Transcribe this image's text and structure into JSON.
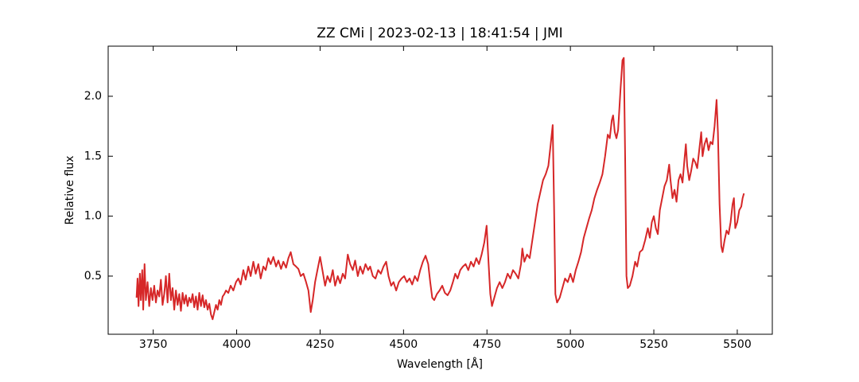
{
  "chart_data": {
    "type": "line",
    "title": "ZZ CMi | 2023-02-13 | 18:41:54 | JMI",
    "xlabel": "Wavelength [Å]",
    "ylabel": "Relative flux",
    "xlim": [
      3615,
      5605
    ],
    "ylim": [
      0.015,
      2.418
    ],
    "xticks": [
      3750,
      4000,
      4250,
      4500,
      4750,
      5000,
      5250,
      5500
    ],
    "yticks": [
      0.5,
      {
        "value": 1,
        "label": "1.0"
      },
      1.5,
      {
        "value": 2,
        "label": "2.0"
      }
    ],
    "grid": false,
    "x": [
      3700,
      3703,
      3706,
      3710,
      3713,
      3717,
      3720,
      3724,
      3728,
      3733,
      3738,
      3743,
      3748,
      3753,
      3758,
      3763,
      3768,
      3773,
      3778,
      3783,
      3788,
      3793,
      3798,
      3803,
      3808,
      3813,
      3818,
      3823,
      3828,
      3833,
      3838,
      3843,
      3848,
      3853,
      3858,
      3863,
      3868,
      3873,
      3878,
      3883,
      3888,
      3893,
      3898,
      3903,
      3908,
      3913,
      3918,
      3923,
      3928,
      3933,
      3938,
      3943,
      3948,
      3953,
      3958,
      3963,
      3968,
      3975,
      3982,
      3990,
      3998,
      4005,
      4012,
      4020,
      4027,
      4035,
      4042,
      4050,
      4057,
      4065,
      4072,
      4080,
      4087,
      4095,
      4102,
      4110,
      4118,
      4125,
      4133,
      4140,
      4148,
      4155,
      4162,
      4170,
      4178,
      4185,
      4192,
      4200,
      4208,
      4215,
      4222,
      4228,
      4235,
      4242,
      4250,
      4257,
      4265,
      4272,
      4280,
      4288,
      4295,
      4303,
      4310,
      4318,
      4325,
      4333,
      4340,
      4348,
      4355,
      4363,
      4370,
      4378,
      4386,
      4394,
      4400,
      4408,
      4416,
      4424,
      4432,
      4440,
      4448,
      4455,
      4463,
      4470,
      4478,
      4486,
      4494,
      4502,
      4510,
      4518,
      4526,
      4534,
      4542,
      4550,
      4558,
      4566,
      4574,
      4580,
      4586,
      4592,
      4600,
      4608,
      4616,
      4624,
      4632,
      4640,
      4648,
      4655,
      4662,
      4670,
      4678,
      4686,
      4694,
      4702,
      4710,
      4718,
      4726,
      4734,
      4742,
      4749,
      4755,
      4760,
      4765,
      4772,
      4780,
      4788,
      4796,
      4804,
      4812,
      4820,
      4828,
      4836,
      4844,
      4852,
      4856,
      4862,
      4870,
      4878,
      4886,
      4894,
      4902,
      4910,
      4918,
      4926,
      4934,
      4941,
      4947,
      4951,
      4955,
      4960,
      4968,
      4976,
      4984,
      4992,
      5000,
      5008,
      5016,
      5024,
      5032,
      5040,
      5048,
      5056,
      5064,
      5072,
      5080,
      5088,
      5096,
      5104,
      5112,
      5118,
      5124,
      5128,
      5133,
      5138,
      5143,
      5150,
      5156,
      5160,
      5164,
      5168,
      5172,
      5178,
      5186,
      5194,
      5200,
      5208,
      5216,
      5224,
      5232,
      5238,
      5244,
      5250,
      5256,
      5262,
      5268,
      5275,
      5282,
      5289,
      5296,
      5300,
      5306,
      5312,
      5318,
      5324,
      5330,
      5336,
      5342,
      5346,
      5350,
      5356,
      5362,
      5368,
      5374,
      5380,
      5386,
      5392,
      5396,
      5402,
      5408,
      5414,
      5420,
      5426,
      5432,
      5438,
      5442,
      5447,
      5452,
      5456,
      5462,
      5468,
      5474,
      5480,
      5486,
      5490,
      5494,
      5500,
      5506,
      5512,
      5516,
      5520
    ],
    "series": [
      {
        "color": "#d62728",
        "values": [
          0.32,
          0.48,
          0.25,
          0.52,
          0.3,
          0.55,
          0.22,
          0.6,
          0.3,
          0.45,
          0.25,
          0.4,
          0.3,
          0.42,
          0.28,
          0.38,
          0.33,
          0.47,
          0.26,
          0.35,
          0.5,
          0.28,
          0.52,
          0.3,
          0.4,
          0.22,
          0.38,
          0.26,
          0.35,
          0.21,
          0.36,
          0.27,
          0.34,
          0.25,
          0.32,
          0.28,
          0.35,
          0.24,
          0.33,
          0.22,
          0.36,
          0.25,
          0.34,
          0.24,
          0.3,
          0.22,
          0.27,
          0.18,
          0.14,
          0.2,
          0.26,
          0.22,
          0.3,
          0.26,
          0.33,
          0.35,
          0.38,
          0.36,
          0.42,
          0.38,
          0.45,
          0.48,
          0.43,
          0.55,
          0.47,
          0.58,
          0.5,
          0.62,
          0.52,
          0.6,
          0.48,
          0.58,
          0.55,
          0.65,
          0.6,
          0.66,
          0.58,
          0.63,
          0.56,
          0.62,
          0.57,
          0.65,
          0.7,
          0.6,
          0.58,
          0.56,
          0.5,
          0.52,
          0.45,
          0.38,
          0.2,
          0.3,
          0.45,
          0.55,
          0.66,
          0.55,
          0.42,
          0.5,
          0.45,
          0.55,
          0.42,
          0.5,
          0.44,
          0.52,
          0.48,
          0.68,
          0.6,
          0.55,
          0.63,
          0.5,
          0.58,
          0.52,
          0.6,
          0.55,
          0.58,
          0.5,
          0.48,
          0.55,
          0.52,
          0.58,
          0.62,
          0.5,
          0.42,
          0.45,
          0.38,
          0.45,
          0.48,
          0.5,
          0.45,
          0.48,
          0.43,
          0.5,
          0.46,
          0.55,
          0.62,
          0.67,
          0.6,
          0.45,
          0.32,
          0.3,
          0.35,
          0.38,
          0.42,
          0.36,
          0.34,
          0.38,
          0.45,
          0.52,
          0.48,
          0.55,
          0.58,
          0.6,
          0.55,
          0.62,
          0.58,
          0.65,
          0.6,
          0.68,
          0.78,
          0.92,
          0.6,
          0.35,
          0.25,
          0.32,
          0.4,
          0.45,
          0.4,
          0.45,
          0.52,
          0.48,
          0.55,
          0.52,
          0.48,
          0.6,
          0.73,
          0.62,
          0.68,
          0.65,
          0.8,
          0.95,
          1.1,
          1.2,
          1.3,
          1.35,
          1.42,
          1.6,
          1.76,
          1.1,
          0.35,
          0.28,
          0.32,
          0.4,
          0.48,
          0.45,
          0.52,
          0.45,
          0.55,
          0.62,
          0.7,
          0.82,
          0.9,
          0.98,
          1.05,
          1.15,
          1.22,
          1.28,
          1.35,
          1.5,
          1.68,
          1.65,
          1.8,
          1.84,
          1.7,
          1.65,
          1.72,
          2.05,
          2.3,
          2.32,
          1.5,
          0.5,
          0.4,
          0.42,
          0.5,
          0.62,
          0.58,
          0.7,
          0.72,
          0.8,
          0.9,
          0.82,
          0.95,
          1.0,
          0.9,
          0.85,
          1.05,
          1.15,
          1.25,
          1.3,
          1.43,
          1.3,
          1.15,
          1.22,
          1.12,
          1.3,
          1.35,
          1.28,
          1.48,
          1.6,
          1.42,
          1.3,
          1.38,
          1.48,
          1.45,
          1.4,
          1.55,
          1.7,
          1.5,
          1.6,
          1.65,
          1.55,
          1.62,
          1.6,
          1.75,
          1.97,
          1.7,
          1.1,
          0.75,
          0.7,
          0.8,
          0.88,
          0.85,
          0.95,
          1.1,
          1.15,
          0.9,
          0.95,
          1.05,
          1.08,
          1.15,
          1.19
        ]
      }
    ]
  }
}
